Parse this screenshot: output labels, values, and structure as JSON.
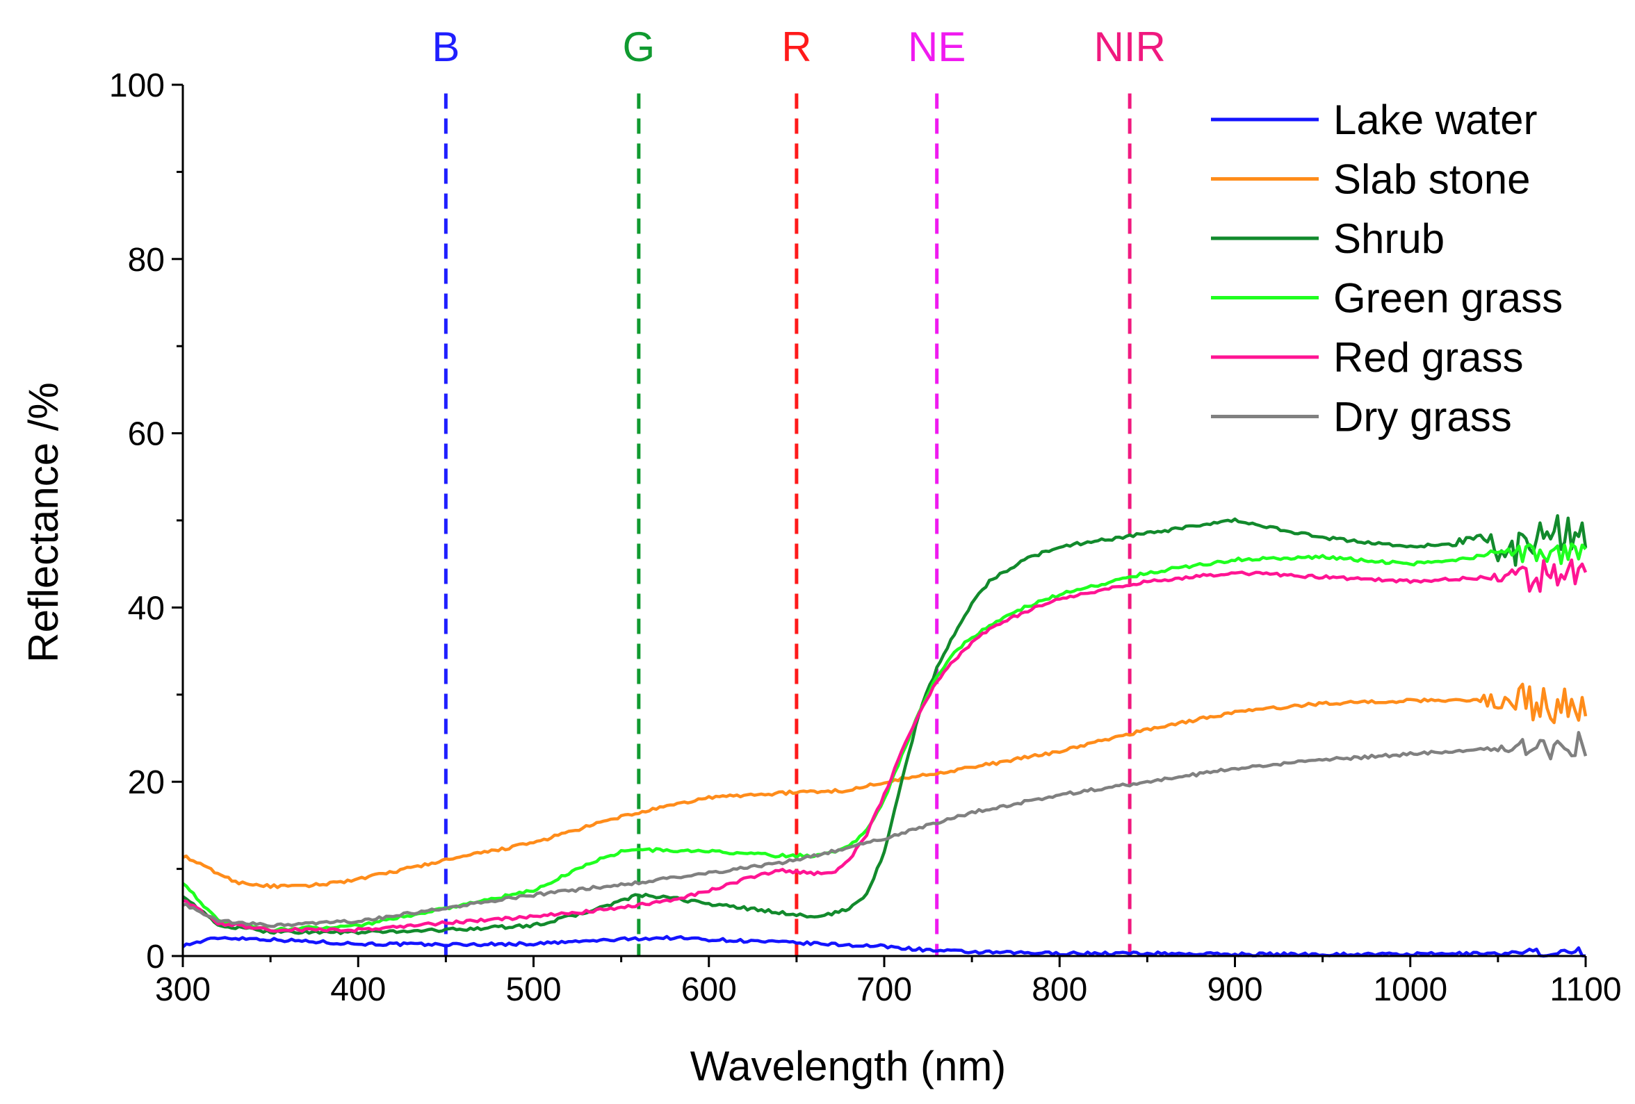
{
  "chart_data": {
    "type": "line",
    "title": "",
    "xlabel": "Wavelength (nm)",
    "ylabel": "Reflectance /%",
    "xlim": [
      300,
      1100
    ],
    "ylim": [
      0,
      100
    ],
    "x_ticks": [
      300,
      400,
      500,
      600,
      700,
      800,
      900,
      1000,
      1100
    ],
    "y_ticks": [
      0,
      20,
      40,
      60,
      80,
      100
    ],
    "x_tick_labels": [
      "300",
      "400",
      "500",
      "600",
      "700",
      "800",
      "900",
      "1000",
      "1100"
    ],
    "y_tick_labels": [
      "0",
      "20",
      "40",
      "60",
      "80",
      "100"
    ],
    "grid": false,
    "legend_position": "top-right",
    "bands": [
      {
        "name": "B",
        "x": 450,
        "color": "#1f1fff"
      },
      {
        "name": "G",
        "x": 560,
        "color": "#109a30"
      },
      {
        "name": "R",
        "x": 650,
        "color": "#ff1a1a"
      },
      {
        "name": "NE",
        "x": 730,
        "color": "#f01af0"
      },
      {
        "name": "NIR",
        "x": 840,
        "color": "#f0197f"
      }
    ],
    "series": [
      {
        "name": "Lake water",
        "color": "#1414ff",
        "noise_from": 1040,
        "noise_amp": 0.5,
        "x": [
          300,
          320,
          340,
          360,
          400,
          450,
          500,
          540,
          560,
          580,
          600,
          650,
          700,
          730,
          760,
          800,
          850,
          900,
          950,
          1000,
          1050,
          1100
        ],
        "y": [
          1.2,
          2.1,
          2.0,
          1.8,
          1.4,
          1.3,
          1.4,
          1.8,
          2.0,
          2.1,
          1.9,
          1.5,
          1.1,
          0.6,
          0.4,
          0.3,
          0.3,
          0.2,
          0.2,
          0.2,
          0.3,
          0.5
        ]
      },
      {
        "name": "Slab stone",
        "color": "#ff8c1a",
        "noise_from": 1030,
        "noise_amp": 2.5,
        "x": [
          300,
          310,
          330,
          350,
          370,
          400,
          450,
          500,
          550,
          600,
          650,
          680,
          700,
          730,
          760,
          800,
          850,
          900,
          950,
          1000,
          1050,
          1100
        ],
        "y": [
          11.5,
          10.5,
          8.5,
          8.0,
          8.0,
          8.8,
          11.0,
          13.0,
          16.0,
          18.2,
          18.8,
          19.0,
          20.0,
          21.0,
          22.0,
          23.5,
          26.0,
          28.0,
          29.0,
          29.3,
          29.5,
          29.0
        ]
      },
      {
        "name": "Shrub",
        "color": "#128a2c",
        "noise_from": 1020,
        "noise_amp": 3.0,
        "x": [
          300,
          320,
          350,
          400,
          450,
          500,
          530,
          560,
          580,
          600,
          620,
          640,
          660,
          670,
          680,
          690,
          700,
          710,
          720,
          730,
          740,
          750,
          760,
          780,
          800,
          850,
          900,
          950,
          1000,
          1050,
          1100
        ],
        "y": [
          7.0,
          3.5,
          2.8,
          2.7,
          3.0,
          3.5,
          5.0,
          7.0,
          6.6,
          6.0,
          5.5,
          5.0,
          4.5,
          4.8,
          5.5,
          7.0,
          12.0,
          20.0,
          28.0,
          33.0,
          37.0,
          40.5,
          43.0,
          45.5,
          47.0,
          48.5,
          50.0,
          48.0,
          47.0,
          47.5,
          48.0
        ]
      },
      {
        "name": "Green grass",
        "color": "#1fff1f",
        "noise_from": 1030,
        "noise_amp": 1.2,
        "x": [
          300,
          320,
          350,
          400,
          450,
          500,
          530,
          550,
          560,
          580,
          600,
          620,
          640,
          660,
          680,
          690,
          700,
          710,
          720,
          730,
          740,
          750,
          760,
          780,
          800,
          850,
          900,
          950,
          1000,
          1050,
          1100
        ],
        "y": [
          8.5,
          4.0,
          3.0,
          3.5,
          5.5,
          7.5,
          10.5,
          12.0,
          12.2,
          12.1,
          12.0,
          11.8,
          11.5,
          11.5,
          12.5,
          14.5,
          18.0,
          23.0,
          28.0,
          32.0,
          35.0,
          36.5,
          38.0,
          40.0,
          41.5,
          44.0,
          45.5,
          45.8,
          45.0,
          46.0,
          46.5
        ]
      },
      {
        "name": "Red grass",
        "color": "#ff1493",
        "noise_from": 1040,
        "noise_amp": 2.2,
        "x": [
          300,
          320,
          350,
          400,
          450,
          500,
          550,
          580,
          600,
          620,
          640,
          660,
          670,
          680,
          690,
          700,
          710,
          720,
          730,
          740,
          750,
          760,
          780,
          800,
          850,
          900,
          950,
          1000,
          1050,
          1100
        ],
        "y": [
          6.5,
          3.8,
          3.0,
          3.0,
          3.8,
          4.5,
          5.5,
          6.5,
          7.5,
          8.8,
          9.8,
          9.5,
          9.5,
          11.0,
          14.0,
          18.5,
          23.5,
          28.0,
          31.5,
          34.0,
          36.0,
          37.5,
          39.5,
          41.0,
          43.0,
          44.0,
          43.5,
          43.0,
          43.5,
          43.5
        ]
      },
      {
        "name": "Dry grass",
        "color": "#808080",
        "noise_from": 1040,
        "noise_amp": 1.6,
        "x": [
          300,
          320,
          350,
          400,
          450,
          500,
          550,
          600,
          650,
          700,
          750,
          800,
          850,
          900,
          950,
          1000,
          1050,
          1100
        ],
        "y": [
          6.0,
          4.0,
          3.5,
          4.0,
          5.5,
          7.0,
          8.2,
          9.5,
          11.0,
          13.5,
          16.5,
          18.5,
          20.0,
          21.5,
          22.5,
          23.2,
          23.8,
          24.5
        ]
      }
    ]
  }
}
